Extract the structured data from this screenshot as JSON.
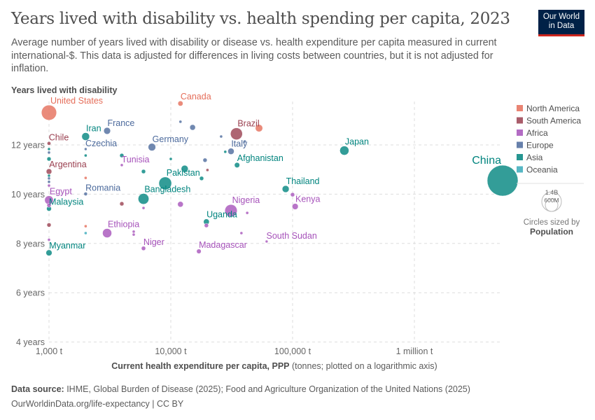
{
  "header": {
    "title": "Years lived with disability vs. health spending per capita, 2023",
    "subtitle": "Average number of years lived with disability or disease vs. health expenditure per capita measured in current international-$. This data is adjusted for differences in living costs between countries, but it is not adjusted for inflation.",
    "logo_line1": "Our World",
    "logo_line2": "in Data"
  },
  "footer": {
    "source_label": "Data source:",
    "source_text": " IHME, Global Burden of Disease (2025); Food and Agriculture Organization of the United Nations (2025)",
    "link": "OurWorldinData.org/life-expectancy | CC BY"
  },
  "chart_data": {
    "type": "scatter",
    "title": "Years lived with disability vs. health spending per capita, 2023",
    "ylabel": "Years lived with disability",
    "xlabel_bold": "Current health expenditure per capita, PPP",
    "xlabel_rest": " (tonnes; plotted on a logarithmic axis)",
    "x_scale": "log",
    "xlim": [
      800,
      6000000
    ],
    "ylim": [
      4,
      13.75
    ],
    "x_ticks": [
      {
        "v": 1000,
        "label": "1,000 t"
      },
      {
        "v": 10000,
        "label": "10,000 t"
      },
      {
        "v": 100000,
        "label": "100,000 t"
      },
      {
        "v": 1000000,
        "label": "1 million t"
      }
    ],
    "y_ticks": [
      {
        "v": 4,
        "label": "4 years"
      },
      {
        "v": 6,
        "label": "6 years"
      },
      {
        "v": 8,
        "label": "8 years"
      },
      {
        "v": 10,
        "label": "10 years"
      },
      {
        "v": 12,
        "label": "12 years"
      }
    ],
    "grid": true,
    "legend_position": "right",
    "regions": [
      {
        "name": "North America",
        "color": "#E56E5A"
      },
      {
        "name": "South America",
        "color": "#9A4050"
      },
      {
        "name": "Africa",
        "color": "#A652BA"
      },
      {
        "name": "Europe",
        "color": "#4C6A9C"
      },
      {
        "name": "Asia",
        "color": "#00847E"
      },
      {
        "name": "Oceania",
        "color": "#38AABA"
      }
    ],
    "size_legend": {
      "large": "1.4B",
      "small": "600M",
      "caption": "Circles sized by",
      "variable": "Population"
    },
    "points": [
      {
        "label": "China",
        "region": "Asia",
        "x": 5300000,
        "y": 10.55,
        "pop": 1410
      },
      {
        "label": "United States",
        "region": "North America",
        "x": 1000,
        "y": 13.31,
        "pop": 340
      },
      {
        "label": "Canada",
        "region": "North America",
        "x": 12000,
        "y": 13.68,
        "pop": 39
      },
      {
        "label": "Brazil",
        "region": "South America",
        "x": 34600,
        "y": 12.45,
        "pop": 211
      },
      {
        "label": "",
        "region": "North America",
        "x": 53000,
        "y": 12.68,
        "pop": 80
      },
      {
        "label": "France",
        "region": "Europe",
        "x": 3000,
        "y": 12.57,
        "pop": 68
      },
      {
        "label": "Iran",
        "region": "Asia",
        "x": 2000,
        "y": 12.34,
        "pop": 90
      },
      {
        "label": "Chile",
        "region": "South America",
        "x": 1000,
        "y": 12.06,
        "pop": 20
      },
      {
        "label": "Czechia",
        "region": "Europe",
        "x": 2000,
        "y": 11.83,
        "pop": 11
      },
      {
        "label": "Germany",
        "region": "Europe",
        "x": 7000,
        "y": 11.91,
        "pop": 84
      },
      {
        "label": "Italy",
        "region": "Europe",
        "x": 31200,
        "y": 11.74,
        "pop": 59
      },
      {
        "label": "Japan",
        "region": "Asia",
        "x": 266000,
        "y": 11.77,
        "pop": 124
      },
      {
        "label": "Afghanistan",
        "region": "Asia",
        "x": 35000,
        "y": 11.18,
        "pop": 41
      },
      {
        "label": "Tunisia",
        "region": "Africa",
        "x": 3960,
        "y": 11.18,
        "pop": 12
      },
      {
        "label": "Argentina",
        "region": "South America",
        "x": 1000,
        "y": 10.92,
        "pop": 46
      },
      {
        "label": "Pakistan",
        "region": "Asia",
        "x": 9000,
        "y": 10.44,
        "pop": 240
      },
      {
        "label": "Bangladesh",
        "region": "Asia",
        "x": 5970,
        "y": 9.81,
        "pop": 172
      },
      {
        "label": "Thailand",
        "region": "Asia",
        "x": 87700,
        "y": 10.21,
        "pop": 71
      },
      {
        "label": "Kenya",
        "region": "Africa",
        "x": 105000,
        "y": 9.5,
        "pop": 55
      },
      {
        "label": "Egypt",
        "region": "Africa",
        "x": 1000,
        "y": 9.76,
        "pop": 112
      },
      {
        "label": "Romania",
        "region": "Europe",
        "x": 2000,
        "y": 10.01,
        "pop": 19
      },
      {
        "label": "Malaysia",
        "region": "Asia",
        "x": 1000,
        "y": 9.41,
        "pop": 35
      },
      {
        "label": "Nigeria",
        "region": "Africa",
        "x": 31200,
        "y": 9.33,
        "pop": 225
      },
      {
        "label": "Uganda",
        "region": "Asia",
        "x": 19600,
        "y": 8.88,
        "pop": 49
      },
      {
        "label": "Ethiopia",
        "region": "Africa",
        "x": 3000,
        "y": 8.42,
        "pop": 126
      },
      {
        "label": "Niger",
        "region": "Africa",
        "x": 5970,
        "y": 7.8,
        "pop": 27
      },
      {
        "label": "Madagascar",
        "region": "Africa",
        "x": 17000,
        "y": 7.68,
        "pop": 31
      },
      {
        "label": "South Sudan",
        "region": "Africa",
        "x": 61200,
        "y": 8.08,
        "pop": 11
      },
      {
        "label": "Myanmar",
        "region": "Asia",
        "x": 1000,
        "y": 7.62,
        "pop": 54
      },
      {
        "label": "",
        "region": "Europe",
        "x": 12000,
        "y": 12.94,
        "pop": 12
      },
      {
        "label": "",
        "region": "Europe",
        "x": 15100,
        "y": 12.71,
        "pop": 47
      },
      {
        "label": "",
        "region": "Europe",
        "x": 25900,
        "y": 12.34,
        "pop": 12
      },
      {
        "label": "",
        "region": "Europe",
        "x": 40500,
        "y": 12.14,
        "pop": 12
      },
      {
        "label": "",
        "region": "Asia",
        "x": 28000,
        "y": 11.72,
        "pop": 12
      },
      {
        "label": "",
        "region": "Asia",
        "x": 10000,
        "y": 11.43,
        "pop": 12
      },
      {
        "label": "",
        "region": "Europe",
        "x": 19100,
        "y": 11.38,
        "pop": 26
      },
      {
        "label": "",
        "region": "South America",
        "x": 20000,
        "y": 10.98,
        "pop": 12
      },
      {
        "label": "",
        "region": "Asia",
        "x": 17900,
        "y": 10.64,
        "pop": 26
      },
      {
        "label": "",
        "region": "Asia",
        "x": 3960,
        "y": 11.57,
        "pop": 26
      },
      {
        "label": "",
        "region": "Asia",
        "x": 13000,
        "y": 11.03,
        "pop": 73
      },
      {
        "label": "",
        "region": "Asia",
        "x": 5970,
        "y": 10.92,
        "pop": 26
      },
      {
        "label": "",
        "region": "Asia",
        "x": 2000,
        "y": 11.57,
        "pop": 12
      },
      {
        "label": "",
        "region": "North America",
        "x": 2000,
        "y": 10.66,
        "pop": 12
      },
      {
        "label": "",
        "region": "South America",
        "x": 3960,
        "y": 9.61,
        "pop": 26
      },
      {
        "label": "",
        "region": "Africa",
        "x": 5970,
        "y": 9.44,
        "pop": 12
      },
      {
        "label": "",
        "region": "Africa",
        "x": 12000,
        "y": 9.59,
        "pop": 47
      },
      {
        "label": "",
        "region": "Africa",
        "x": 100000,
        "y": 9.98,
        "pop": 26
      },
      {
        "label": "",
        "region": "Africa",
        "x": 42400,
        "y": 9.24,
        "pop": 12
      },
      {
        "label": "",
        "region": "Africa",
        "x": 38000,
        "y": 8.42,
        "pop": 12
      },
      {
        "label": "",
        "region": "Africa",
        "x": 19600,
        "y": 8.73,
        "pop": 26
      },
      {
        "label": "",
        "region": "North America",
        "x": 2000,
        "y": 8.7,
        "pop": 12
      },
      {
        "label": "",
        "region": "Oceania",
        "x": 2000,
        "y": 8.42,
        "pop": 12
      },
      {
        "label": "",
        "region": "Africa",
        "x": 4960,
        "y": 8.36,
        "pop": 12
      },
      {
        "label": "",
        "region": "Africa",
        "x": 4960,
        "y": 8.48,
        "pop": 12
      },
      {
        "label": "",
        "region": "Asia",
        "x": 1000,
        "y": 11.83,
        "pop": 12
      },
      {
        "label": "",
        "region": "Europe",
        "x": 1000,
        "y": 11.69,
        "pop": 12
      },
      {
        "label": "",
        "region": "Asia",
        "x": 1000,
        "y": 11.43,
        "pop": 26
      },
      {
        "label": "",
        "region": "Asia",
        "x": 1000,
        "y": 10.75,
        "pop": 12
      },
      {
        "label": "",
        "region": "Europe",
        "x": 1000,
        "y": 10.64,
        "pop": 12
      },
      {
        "label": "",
        "region": "Europe",
        "x": 1000,
        "y": 10.5,
        "pop": 12
      },
      {
        "label": "",
        "region": "Africa",
        "x": 1000,
        "y": 10.35,
        "pop": 12
      },
      {
        "label": "",
        "region": "Africa",
        "x": 1000,
        "y": 9.55,
        "pop": 26
      },
      {
        "label": "",
        "region": "South America",
        "x": 1000,
        "y": 8.75,
        "pop": 26
      },
      {
        "label": "",
        "region": "Africa",
        "x": 1000,
        "y": 8.15,
        "pop": 12
      }
    ]
  }
}
